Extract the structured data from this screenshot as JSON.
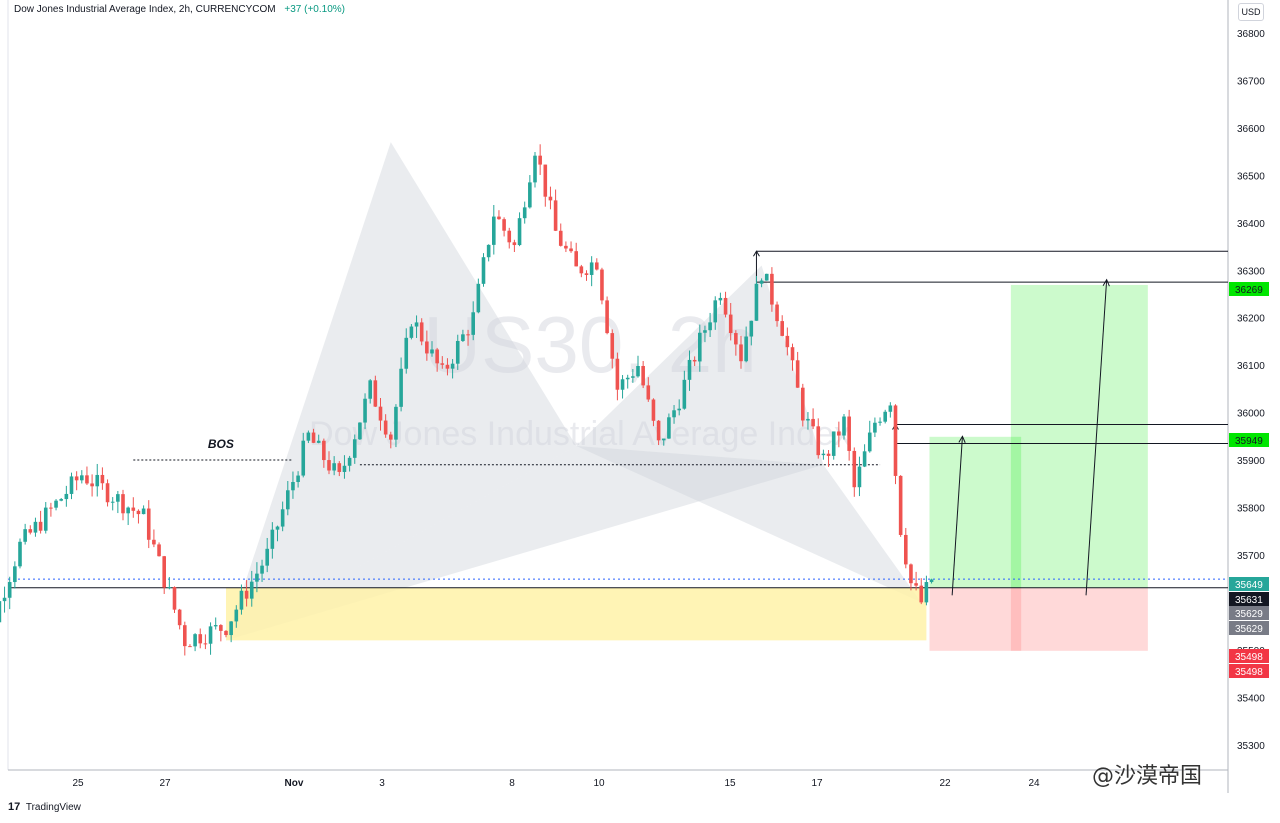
{
  "header": {
    "title": "Dow Jones Industrial Average Index, 2h, CURRENCYCOM",
    "change": "+37 (+0.10%)"
  },
  "currency_button": "USD",
  "brand": {
    "logo": "17",
    "name": "TradingView"
  },
  "watermark": {
    "big": "US30, 2h",
    "sub": "Dow Jones Industrial Average Index",
    "corner": "@沙漠帝国"
  },
  "annotations": {
    "bos": "BOS"
  },
  "colors": {
    "up": "#26a69a",
    "down": "#ef5350",
    "target_zone": "#00e600",
    "stop_zone": "#ff8080",
    "support_zone": "#fff2a8",
    "pattern_fill": "#d1d4dc"
  },
  "chart_data": {
    "type": "candlestick",
    "x_ticks": [
      "25",
      "27",
      "Nov",
      "3",
      "8",
      "10",
      "15",
      "17",
      "22",
      "24"
    ],
    "y_ticks": [
      36800,
      36700,
      36600,
      36500,
      36400,
      36300,
      36200,
      36100,
      36000,
      35900,
      35800,
      35700,
      35500,
      35400,
      35300
    ],
    "ylim": [
      35260,
      36890
    ],
    "price_labels": [
      {
        "value": "36269",
        "kind": "target"
      },
      {
        "value": "35949",
        "kind": "target"
      },
      {
        "value": "35649",
        "kind": "last"
      },
      {
        "value": "35631",
        "kind": "entry"
      },
      {
        "value": "35629",
        "kind": "grey"
      },
      {
        "value": "35629",
        "kind": "grey"
      },
      {
        "value": "35498",
        "kind": "stop"
      },
      {
        "value": "35498",
        "kind": "stop"
      }
    ],
    "levels": {
      "bos": 35900,
      "neckline": 35890,
      "support_top": 35631,
      "support_bottom": 35520,
      "top_box_upper": 36340,
      "top_box_lower": 36275,
      "target1": 36269,
      "target2": 35949,
      "upper_mid": 35975,
      "stop": 35498,
      "last": 35649
    },
    "pattern": {
      "x": [
        0.0,
        16.0,
        34.0,
        52.0,
        58.0,
        67.5
      ],
      "y": [
        35520,
        36570,
        35930,
        36310,
        35890,
        35600
      ]
    },
    "anchors": [
      {
        "x": -25,
        "price": 35420
      },
      {
        "x": -20,
        "price": 35720
      },
      {
        "x": -14,
        "price": 35870
      },
      {
        "x": -8,
        "price": 35780
      },
      {
        "x": -4,
        "price": 35520
      },
      {
        "x": 0,
        "price": 35550
      },
      {
        "x": 4,
        "price": 35700
      },
      {
        "x": 8,
        "price": 35950
      },
      {
        "x": 11,
        "price": 35860
      },
      {
        "x": 14,
        "price": 36050
      },
      {
        "x": 16,
        "price": 35950
      },
      {
        "x": 18,
        "price": 36200
      },
      {
        "x": 21,
        "price": 36080
      },
      {
        "x": 24,
        "price": 36200
      },
      {
        "x": 26,
        "price": 36420
      },
      {
        "x": 28,
        "price": 36350
      },
      {
        "x": 30,
        "price": 36560
      },
      {
        "x": 32,
        "price": 36380
      },
      {
        "x": 34,
        "price": 36300
      },
      {
        "x": 36,
        "price": 36320
      },
      {
        "x": 38,
        "price": 36050
      },
      {
        "x": 40,
        "price": 36100
      },
      {
        "x": 42,
        "price": 35930
      },
      {
        "x": 44,
        "price": 36030
      },
      {
        "x": 46,
        "price": 36150
      },
      {
        "x": 48,
        "price": 36260
      },
      {
        "x": 50,
        "price": 36120
      },
      {
        "x": 52,
        "price": 36300
      },
      {
        "x": 54,
        "price": 36180
      },
      {
        "x": 56,
        "price": 36000
      },
      {
        "x": 58,
        "price": 35900
      },
      {
        "x": 60,
        "price": 35980
      },
      {
        "x": 61,
        "price": 35840
      },
      {
        "x": 63,
        "price": 35980
      },
      {
        "x": 64.5,
        "price": 36030
      },
      {
        "x": 65.3,
        "price": 35780
      },
      {
        "x": 66.5,
        "price": 35640
      },
      {
        "x": 67.5,
        "price": 35600
      },
      {
        "x": 68.5,
        "price": 35649
      }
    ]
  }
}
